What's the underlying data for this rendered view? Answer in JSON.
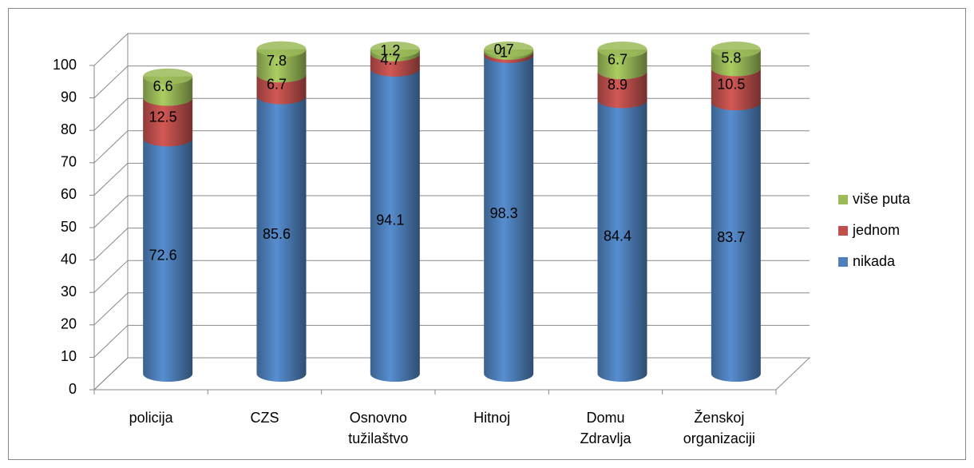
{
  "chart_data": {
    "type": "bar3d_stacked",
    "categories": [
      "policija",
      "CZS",
      "Osnovno tužilaštvo",
      "Hitnoj",
      "Domu Zdravlja",
      "Ženskoj organizaciji"
    ],
    "series": [
      {
        "name": "nikada",
        "color": "#4f81bd",
        "values": [
          72.6,
          85.6,
          94.1,
          98.3,
          84.4,
          83.7
        ]
      },
      {
        "name": "jednom",
        "color": "#c0504d",
        "values": [
          12.5,
          6.7,
          4.7,
          1.0,
          8.9,
          10.5
        ]
      },
      {
        "name": "više puta",
        "color": "#9bbb59",
        "values": [
          6.6,
          7.8,
          1.2,
          0.7,
          6.7,
          5.8
        ]
      }
    ],
    "ylim": [
      0,
      100
    ],
    "yticks": [
      0,
      10,
      20,
      30,
      40,
      50,
      60,
      70,
      80,
      90,
      100
    ],
    "grid": true,
    "legend": "right"
  }
}
